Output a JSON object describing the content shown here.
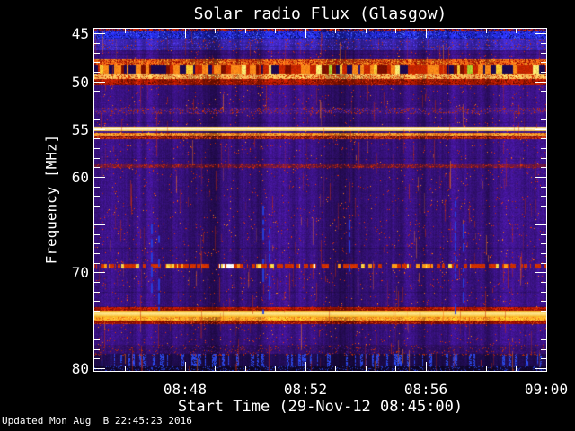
{
  "footer": {
    "updated": "Updated Mon Aug  B 22:45:23 2016"
  },
  "chart_data": {
    "type": "heatmap",
    "subtype": "radio-spectrogram",
    "title": "Solar radio Flux (Glasgow)",
    "xlabel": "Start Time (29-Nov-12 08:45:00)",
    "ylabel": "Frequency [MHz]",
    "time_start": "08:45",
    "time_end": "09:00",
    "xlim_minutes": [
      0,
      15
    ],
    "xticks": {
      "major_min": [
        3,
        7,
        11,
        15
      ],
      "major_labels": [
        "08:48",
        "08:52",
        "08:56",
        "09:00"
      ],
      "minor_every_min": 1
    },
    "ylim_mhz": [
      44.5,
      80.3
    ],
    "yticks": {
      "labeled": [
        45,
        50,
        55,
        60,
        70,
        80
      ],
      "major_every": 5,
      "minor_every": 1
    },
    "grid": false,
    "legend": false,
    "frame_color": "#ffffff",
    "text_color": "#ffffff",
    "background_color": "#000000",
    "noise_background": {
      "base": "#331074",
      "speckle": "#c22808",
      "p": 0.013,
      "speckle2": "#ff7718",
      "p2": 0.003
    },
    "bands": [
      {
        "f0": 44.5,
        "f1": 44.78,
        "kind": "solid",
        "base": "#2a0a48",
        "speckle": "#c42000",
        "p": 0.4,
        "speckle2": "#2038c0",
        "p2": 0.15
      },
      {
        "f0": 44.78,
        "f1": 45.55,
        "kind": "solid",
        "base": "#2026c6",
        "speckle": "#0a0f66",
        "p": 0.15,
        "speckle2": "#4a62ff",
        "p2": 0.12
      },
      {
        "f0": 45.55,
        "f1": 46.78,
        "kind": "solid",
        "base": "#34209e",
        "speckle": "#b83010",
        "p": 0.035,
        "speckle2": "#4a35d0",
        "p2": 0.1
      },
      {
        "f0": 47.7,
        "f1": 48.3,
        "kind": "solid",
        "base": "#e05812",
        "speckle": "#9a0c00",
        "p": 0.25,
        "speckle2": "#ffa028",
        "p2": 0.2
      },
      {
        "f0": 48.3,
        "f1": 49.2,
        "kind": "stripes",
        "colors": [
          "#1d0950",
          "#c62600",
          "#ff8818",
          "#ffc832",
          "#7c0e00",
          "#ffe870",
          "#a8c828",
          "#31106e"
        ],
        "weights": [
          0.22,
          0.26,
          0.2,
          0.12,
          0.1,
          0.04,
          0.02,
          0.04
        ]
      },
      {
        "f0": 49.2,
        "f1": 49.78,
        "kind": "solid",
        "base": "#eda04a",
        "speckle": "#c23000",
        "p": 0.22,
        "speckle2": "#ffd470",
        "p2": 0.15
      },
      {
        "f0": 49.78,
        "f1": 50.4,
        "kind": "solid",
        "base": "#9c1600",
        "speckle": "#5e0a00",
        "p": 0.2,
        "speckle2": "#cc3410",
        "p2": 0.12
      },
      {
        "f0": 52.8,
        "f1": 53.4,
        "kind": "solid",
        "base": "#3a1478",
        "speckle": "#b02810",
        "p": 0.14,
        "speckle2": "#4c2094",
        "p2": 0.2
      },
      {
        "f0": 54.75,
        "f1": 55.18,
        "kind": "line",
        "edge": "#ffc83c",
        "core": "#fffbe8"
      },
      {
        "f0": 55.38,
        "f1": 55.68,
        "kind": "solid",
        "base": "#f5861c",
        "speckle": "#c84808",
        "p": 0.18,
        "speckle2": "#ffb040",
        "p2": 0.2
      },
      {
        "f0": 55.8,
        "f1": 56.08,
        "kind": "solid",
        "base": "#8e1804",
        "speckle": "#d04018",
        "p": 0.3,
        "speckle2": "#5c0c00",
        "p2": 0.15
      },
      {
        "f0": 58.72,
        "f1": 59.1,
        "kind": "solid",
        "base": "#5a1240",
        "speckle": "#c02808",
        "p": 0.2,
        "speckle2": "#6e1a30",
        "p2": 0.2
      },
      {
        "f0": 69.1,
        "f1": 69.55,
        "kind": "dots",
        "bg": "#31106e",
        "colors": [
          "#d03000",
          "#ff9818",
          "#ffd84a",
          "#ffffff"
        ],
        "probs": [
          0.42,
          0.14,
          0.07,
          0.02
        ]
      },
      {
        "f0": 73.6,
        "f1": 74.02,
        "kind": "solid",
        "base": "#a81400",
        "speckle": "#700a00",
        "p": 0.15,
        "speckle2": "#c83008",
        "p2": 0.15
      },
      {
        "f0": 74.02,
        "f1": 74.62,
        "kind": "line",
        "edge": "#f7b926",
        "core": "#ffe890"
      },
      {
        "f0": 74.62,
        "f1": 75.02,
        "kind": "solid",
        "base": "#fb9c22",
        "speckle": "#e06810",
        "p": 0.15,
        "speckle2": "#ffb948",
        "p2": 0.15
      },
      {
        "f0": 75.02,
        "f1": 75.45,
        "kind": "solid",
        "base": "#7c0c00",
        "speckle": "#c83a10",
        "p": 0.18,
        "speckle2": "#a01c04",
        "p2": 0.15
      },
      {
        "f0": 77.55,
        "f1": 78.55,
        "kind": "solid",
        "base": "#2b0d5c",
        "speckle": "#b02808",
        "p": 0.05,
        "speckle2": "#381276",
        "p2": 0.15
      },
      {
        "f0": 78.55,
        "f1": 79.85,
        "kind": "vdash",
        "base": "#1d0b4a",
        "dash": "#2a44dd",
        "p": 0.3,
        "speckle": "#b02808",
        "sp": 0.05
      },
      {
        "f0": 79.85,
        "f1": 80.3,
        "kind": "solid",
        "base": "#0d0524",
        "speckle": "#2038c0",
        "p": 0.15,
        "speckle2": "#180a3c",
        "p2": 0.2
      }
    ],
    "vertical_streaks": {
      "color": "#2440e0",
      "items": [
        {
          "t_min": 1.88,
          "f0": 62.8,
          "f1": 73.0
        },
        {
          "t_min": 2.12,
          "f0": 63.5,
          "f1": 74.3
        },
        {
          "t_min": 5.58,
          "f0": 63.0,
          "f1": 74.3
        },
        {
          "t_min": 5.8,
          "f0": 64.0,
          "f1": 72.5
        },
        {
          "t_min": 8.45,
          "f0": 64.5,
          "f1": 70.0
        },
        {
          "t_min": 11.97,
          "f0": 62.5,
          "f1": 73.5
        },
        {
          "t_min": 12.22,
          "f0": 63.2,
          "f1": 74.4
        }
      ]
    }
  }
}
